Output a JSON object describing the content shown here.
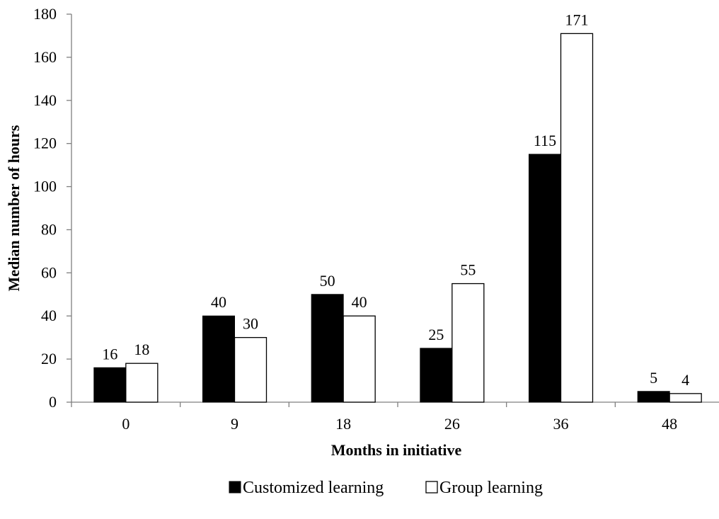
{
  "chart_data": {
    "type": "bar",
    "categories": [
      "0",
      "9",
      "18",
      "26",
      "36",
      "48"
    ],
    "series": [
      {
        "name": "Customized learning",
        "values": [
          16,
          40,
          50,
          25,
          115,
          5
        ],
        "color": "#000000"
      },
      {
        "name": "Group learning",
        "values": [
          18,
          30,
          40,
          55,
          171,
          4
        ],
        "color": "#ffffff"
      }
    ],
    "xlabel": "Months in initiative",
    "ylabel": "Median number of hours",
    "ylim": [
      0,
      180
    ],
    "yticks": [
      0,
      20,
      40,
      60,
      80,
      100,
      120,
      140,
      160,
      180
    ],
    "grid": false,
    "legend_position": "bottom"
  }
}
